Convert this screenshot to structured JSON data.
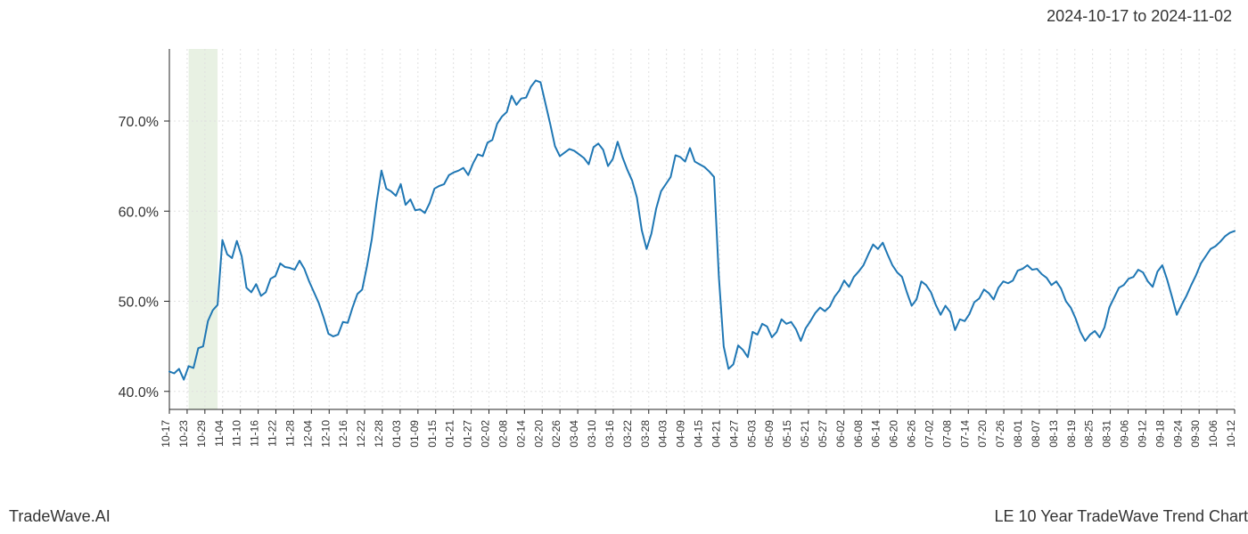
{
  "header": {
    "date_range": "2024-10-17 to 2024-11-02"
  },
  "footer": {
    "left": "TradeWave.AI",
    "right": "LE 10 Year TradeWave Trend Chart"
  },
  "chart": {
    "type": "line",
    "background_color": "#ffffff",
    "grid_color": "#e0e0e0",
    "grid_dash": "2,3",
    "axis_color": "#262626",
    "line_color": "#1f77b4",
    "line_width": 2,
    "highlight_band": {
      "start_index": 4,
      "end_index": 10,
      "fill": "#d9e8d0",
      "opacity": 0.6
    },
    "y_axis": {
      "min": 38,
      "max": 78,
      "ticks": [
        40,
        50,
        60,
        70
      ],
      "tick_labels": [
        "40.0%",
        "50.0%",
        "60.0%",
        "70.0%"
      ],
      "label_fontsize": 16,
      "label_color": "#333333"
    },
    "x_axis": {
      "label_fontsize": 12,
      "label_color": "#333333",
      "rotation": -90,
      "ticks": [
        "10-17",
        "10-23",
        "10-29",
        "11-04",
        "11-10",
        "11-16",
        "11-22",
        "11-28",
        "12-04",
        "12-10",
        "12-16",
        "12-22",
        "12-28",
        "01-03",
        "01-09",
        "01-15",
        "01-21",
        "01-27",
        "02-02",
        "02-08",
        "02-14",
        "02-20",
        "02-26",
        "03-04",
        "03-10",
        "03-16",
        "03-22",
        "03-28",
        "04-03",
        "04-09",
        "04-15",
        "04-21",
        "04-27",
        "05-03",
        "05-09",
        "05-15",
        "05-21",
        "05-27",
        "06-02",
        "06-08",
        "06-14",
        "06-20",
        "06-26",
        "07-02",
        "07-08",
        "07-14",
        "07-20",
        "07-26",
        "08-01",
        "08-07",
        "08-13",
        "08-19",
        "08-25",
        "08-31",
        "09-06",
        "09-12",
        "09-18",
        "09-24",
        "09-30",
        "10-06",
        "10-12"
      ]
    },
    "series": {
      "values": [
        42.2,
        42.0,
        42.5,
        41.3,
        42.8,
        42.6,
        44.8,
        45.0,
        47.8,
        49.0,
        49.6,
        56.8,
        55.2,
        54.8,
        56.7,
        55.0,
        51.5,
        51.0,
        51.9,
        50.6,
        51.0,
        52.5,
        52.8,
        54.2,
        53.8,
        53.7,
        53.5,
        54.5,
        53.6,
        52.2,
        51.0,
        49.8,
        48.2,
        46.4,
        46.1,
        46.3,
        47.7,
        47.6,
        49.3,
        50.8,
        51.3,
        53.9,
        56.9,
        61.0,
        64.5,
        62.5,
        62.2,
        61.7,
        63.0,
        60.7,
        61.3,
        60.1,
        60.2,
        59.8,
        60.9,
        62.5,
        62.8,
        63.0,
        64.0,
        64.3,
        64.5,
        64.8,
        64.0,
        65.3,
        66.3,
        66.1,
        67.6,
        67.9,
        69.7,
        70.5,
        71.0,
        72.8,
        71.8,
        72.5,
        72.6,
        73.8,
        74.5,
        74.3,
        72.0,
        69.7,
        67.2,
        66.1,
        66.5,
        66.9,
        66.7,
        66.3,
        65.9,
        65.2,
        67.1,
        67.5,
        66.8,
        65.0,
        65.8,
        67.7,
        66.0,
        64.6,
        63.4,
        61.5,
        57.9,
        55.8,
        57.5,
        60.3,
        62.2,
        63.0,
        63.8,
        66.2,
        66.0,
        65.5,
        67.0,
        65.5,
        65.2,
        64.9,
        64.4,
        63.8,
        52.7,
        45.0,
        42.5,
        43.0,
        45.1,
        44.6,
        43.8,
        46.6,
        46.3,
        47.5,
        47.2,
        46.0,
        46.6,
        48.0,
        47.5,
        47.7,
        46.9,
        45.6,
        47.0,
        47.8,
        48.7,
        49.3,
        48.9,
        49.4,
        50.5,
        51.2,
        52.3,
        51.6,
        52.7,
        53.3,
        54.0,
        55.2,
        56.3,
        55.8,
        56.5,
        55.2,
        54.0,
        53.2,
        52.7,
        51.0,
        49.5,
        50.2,
        52.2,
        51.8,
        51.0,
        49.6,
        48.5,
        49.5,
        48.8,
        46.8,
        48.0,
        47.8,
        48.6,
        49.9,
        50.3,
        51.3,
        50.9,
        50.2,
        51.5,
        52.2,
        52.0,
        52.3,
        53.4,
        53.6,
        54.0,
        53.5,
        53.6,
        53.0,
        52.6,
        51.8,
        52.2,
        51.4,
        50.0,
        49.3,
        48.1,
        46.6,
        45.6,
        46.3,
        46.7,
        46.0,
        47.1,
        49.3,
        50.4,
        51.5,
        51.8,
        52.5,
        52.7,
        53.5,
        53.2,
        52.2,
        51.6,
        53.3,
        54.0,
        52.4,
        50.5,
        48.5,
        49.6,
        50.6,
        51.8,
        52.9,
        54.2,
        55.0,
        55.8,
        56.1,
        56.6,
        57.2,
        57.6,
        57.8
      ]
    }
  }
}
